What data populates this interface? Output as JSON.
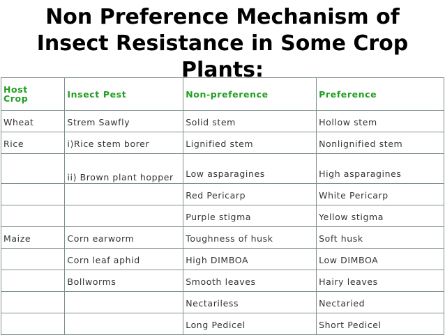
{
  "title": {
    "line1": "Non Preference Mechanism of",
    "line2": "Insect Resistance in Some Crop",
    "line3": "Plants:"
  },
  "table": {
    "headers": {
      "host_crop_1": "Host",
      "host_crop_2": "Crop",
      "insect_pest": "Insect Pest",
      "non_preference": "Non-preference",
      "preference": "Preference"
    },
    "rows": [
      {
        "crop": "Wheat",
        "pest": "Strem Sawfly",
        "non_pref": "Solid stem",
        "pref": "Hollow stem"
      },
      {
        "crop": "Rice",
        "pest": "i)Rice stem borer",
        "non_pref": "Lignified stem",
        "pref": "Nonlignified stem"
      },
      {
        "crop": "",
        "pest": "ii) Brown plant hopper",
        "non_pref": "Low asparagines",
        "pref": "High asparagines"
      },
      {
        "crop": "",
        "pest": "",
        "non_pref": "Red Pericarp",
        "pref": "White Pericarp"
      },
      {
        "crop": "",
        "pest": "",
        "non_pref": "Purple stigma",
        "pref": "Yellow stigma"
      },
      {
        "crop": "Maize",
        "pest": "Corn earworm",
        "non_pref": "Toughness of husk",
        "pref": "Soft husk"
      },
      {
        "crop": "",
        "pest": "Corn leaf aphid",
        "non_pref": "High DIMBOA",
        "pref": "Low DIMBOA"
      },
      {
        "crop": "",
        "pest": "Bollworms",
        "non_pref": "Smooth leaves",
        "pref": "Hairy leaves"
      },
      {
        "crop": "",
        "pest": "",
        "non_pref": "Nectariless",
        "pref": "Nectaried"
      },
      {
        "crop": "",
        "pest": "",
        "non_pref": "Long Pedicel",
        "pref": "Short Pedicel"
      }
    ]
  }
}
